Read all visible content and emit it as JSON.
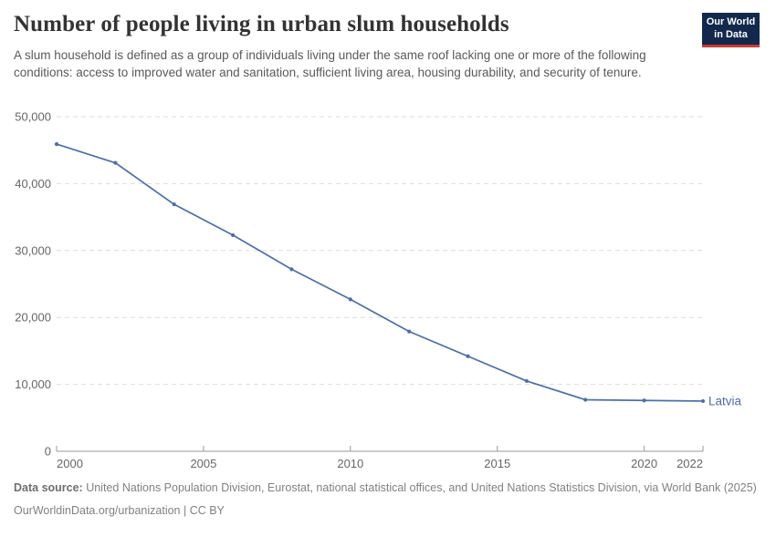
{
  "header": {
    "title": "Number of people living in urban slum households",
    "subtitle": "A slum household is defined as a group of individuals living under the same roof lacking one or more of the following conditions: access to improved water and sanitation, sufficient living area, housing durability, and security of tenure.",
    "logo": {
      "line1": "Our World",
      "line2": "in Data"
    }
  },
  "chart_data": {
    "type": "line",
    "title": "Number of people living in urban slum households",
    "xlabel": "",
    "ylabel": "",
    "xlim": [
      2000,
      2022
    ],
    "ylim": [
      0,
      50000
    ],
    "x_ticks": [
      2000,
      2005,
      2010,
      2015,
      2020,
      2022
    ],
    "y_ticks": [
      0,
      10000,
      20000,
      30000,
      40000,
      50000
    ],
    "y_tick_labels": [
      "0",
      "10,000",
      "20,000",
      "30,000",
      "40,000",
      "50,000"
    ],
    "grid": true,
    "grid_style": "dashed",
    "legend_position": "end-of-line",
    "series": [
      {
        "name": "Latvia",
        "color": "#4c6fa8",
        "x": [
          2000,
          2002,
          2004,
          2006,
          2008,
          2010,
          2012,
          2014,
          2016,
          2018,
          2020,
          2022
        ],
        "values": [
          45900,
          43100,
          36900,
          32300,
          27200,
          22700,
          17900,
          14200,
          10500,
          7700,
          7600,
          7500
        ]
      }
    ]
  },
  "footer": {
    "datasource_label": "Data source:",
    "datasource_text": " United Nations Population Division, Eurostat, national statistical offices, and United Nations Statistics Division, via World Bank (2025)",
    "link_line": "OurWorldinData.org/urbanization | CC BY"
  },
  "colors": {
    "line": "#4c6fa8",
    "title_text": "#333333",
    "subtitle_text": "#595959",
    "axis_text": "#666666",
    "gridline": "#dddddd",
    "axis_line": "#999999",
    "footer_text": "#818181",
    "logo_navy": "#12294d",
    "logo_red": "#cc3b33"
  }
}
